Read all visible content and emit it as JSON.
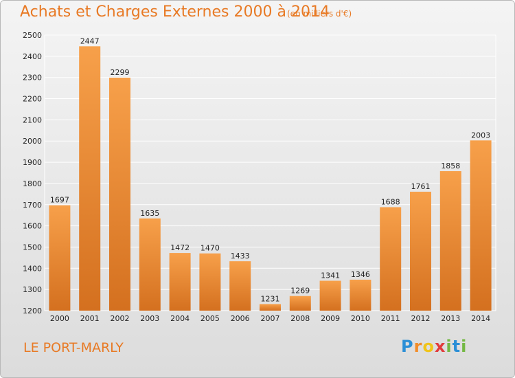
{
  "chart_data": {
    "type": "bar",
    "title": "Achats et Charges Externes 2000 à 2014",
    "subtitle": "(en milliers d'€)",
    "categories": [
      "2000",
      "2001",
      "2002",
      "2003",
      "2004",
      "2005",
      "2006",
      "2007",
      "2008",
      "2009",
      "2010",
      "2011",
      "2012",
      "2013",
      "2014"
    ],
    "values": [
      1697,
      2447,
      2299,
      1635,
      1472,
      1470,
      1433,
      1231,
      1269,
      1341,
      1346,
      1688,
      1761,
      1858,
      2003
    ],
    "ylim": [
      1200,
      2500
    ],
    "yticks": [
      1200,
      1300,
      1400,
      1500,
      1600,
      1700,
      1800,
      1900,
      2000,
      2100,
      2200,
      2300,
      2400,
      2500
    ],
    "grid": true,
    "bar_color": "#f0923a"
  },
  "footer": {
    "commune": "LE PORT-MARLY",
    "logo_letters": [
      "P",
      "r",
      "o",
      "x",
      "i",
      "t",
      "i"
    ],
    "logo_colors": [
      "#2b8fd6",
      "#f28c28",
      "#f0c419",
      "#e23b3b",
      "#74b843",
      "#2b8fd6",
      "#74b843"
    ]
  }
}
